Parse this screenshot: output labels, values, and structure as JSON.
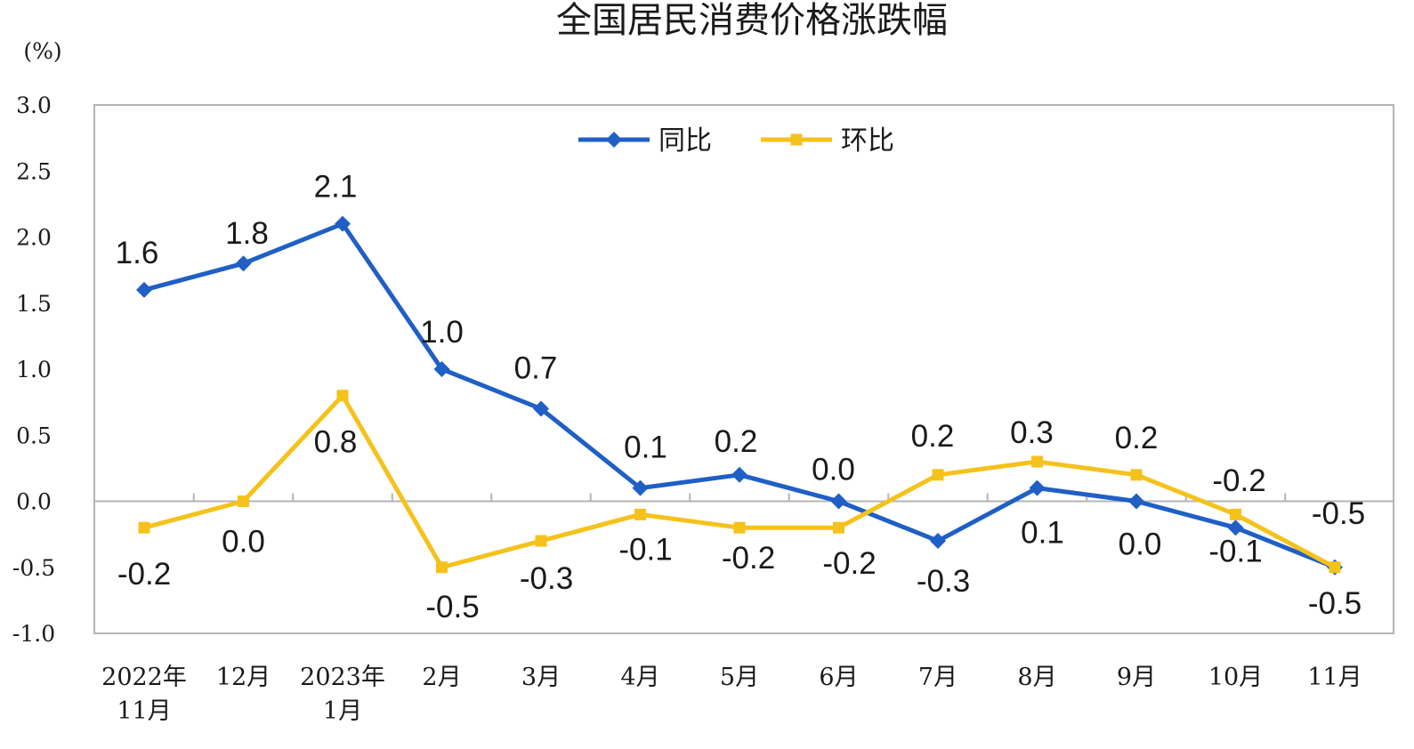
{
  "chart_data": {
    "type": "line",
    "title": "全国居民消费价格涨跌幅",
    "unit_label": "(%)",
    "ylim": [
      -1.0,
      3.0
    ],
    "yticks": [
      "3.0",
      "2.5",
      "2.0",
      "1.5",
      "1.0",
      "0.5",
      "0.0",
      "-0.5",
      "-1.0"
    ],
    "categories": [
      [
        "2022年",
        "11月"
      ],
      [
        "12月"
      ],
      [
        "2023年",
        "1月"
      ],
      [
        "2月"
      ],
      [
        "3月"
      ],
      [
        "4月"
      ],
      [
        "5月"
      ],
      [
        "6月"
      ],
      [
        "7月"
      ],
      [
        "8月"
      ],
      [
        "9月"
      ],
      [
        "10月"
      ],
      [
        "11月"
      ]
    ],
    "legend_position": "top-center",
    "grid": false,
    "series": [
      {
        "name": "同比",
        "color": "#1f5fc6",
        "marker": "diamond",
        "values": [
          1.6,
          1.8,
          2.1,
          1.0,
          0.7,
          0.1,
          0.2,
          0.0,
          -0.3,
          0.1,
          0.0,
          -0.2,
          -0.5
        ],
        "labels": [
          "1.6",
          "1.8",
          "2.1",
          "1.0",
          "0.7",
          "0.1",
          "0.2",
          "0.0",
          "-0.3",
          "0.1",
          "0.0",
          "-0.2",
          "-0.5"
        ]
      },
      {
        "name": "环比",
        "color": "#f5c21b",
        "marker": "square",
        "values": [
          -0.2,
          0.0,
          0.8,
          -0.5,
          -0.3,
          -0.1,
          -0.2,
          -0.2,
          0.2,
          0.3,
          0.2,
          -0.1,
          -0.5
        ],
        "labels": [
          "-0.2",
          "0.0",
          "0.8",
          "-0.5",
          "-0.3",
          "-0.1",
          "-0.2",
          "-0.2",
          "0.2",
          "0.3",
          "0.2",
          "-0.1",
          "-0.5"
        ]
      }
    ]
  }
}
